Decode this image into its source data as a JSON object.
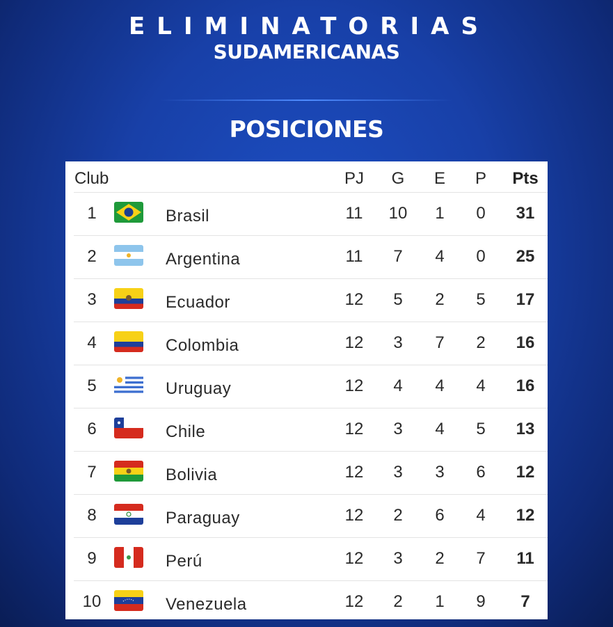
{
  "header": {
    "title": "ELIMINATORIAS",
    "subtitle": "SUDAMERICANAS",
    "section": "POSICIONES"
  },
  "table": {
    "columns": {
      "club": "Club",
      "pj": "PJ",
      "g": "G",
      "e": "E",
      "p": "P",
      "pts": "Pts"
    },
    "rows": [
      {
        "rank": "1",
        "flag": "brazil-flag",
        "name": "Brasil",
        "pj": "11",
        "g": "10",
        "e": "1",
        "p": "0",
        "pts": "31"
      },
      {
        "rank": "2",
        "flag": "argentina-flag",
        "name": "Argentina",
        "pj": "11",
        "g": "7",
        "e": "4",
        "p": "0",
        "pts": "25"
      },
      {
        "rank": "3",
        "flag": "ecuador-flag",
        "name": "Ecuador",
        "pj": "12",
        "g": "5",
        "e": "2",
        "p": "5",
        "pts": "17"
      },
      {
        "rank": "4",
        "flag": "colombia-flag",
        "name": "Colombia",
        "pj": "12",
        "g": "3",
        "e": "7",
        "p": "2",
        "pts": "16"
      },
      {
        "rank": "5",
        "flag": "uruguay-flag",
        "name": "Uruguay",
        "pj": "12",
        "g": "4",
        "e": "4",
        "p": "4",
        "pts": "16"
      },
      {
        "rank": "6",
        "flag": "chile-flag",
        "name": "Chile",
        "pj": "12",
        "g": "3",
        "e": "4",
        "p": "5",
        "pts": "13"
      },
      {
        "rank": "7",
        "flag": "bolivia-flag",
        "name": "Bolivia",
        "pj": "12",
        "g": "3",
        "e": "3",
        "p": "6",
        "pts": "12"
      },
      {
        "rank": "8",
        "flag": "paraguay-flag",
        "name": "Paraguay",
        "pj": "12",
        "g": "2",
        "e": "6",
        "p": "4",
        "pts": "12"
      },
      {
        "rank": "9",
        "flag": "peru-flag",
        "name": "Perú",
        "pj": "12",
        "g": "3",
        "e": "2",
        "p": "7",
        "pts": "11"
      },
      {
        "rank": "10",
        "flag": "venezuela-flag",
        "name": "Venezuela",
        "pj": "12",
        "g": "2",
        "e": "1",
        "p": "9",
        "pts": "7"
      }
    ]
  }
}
